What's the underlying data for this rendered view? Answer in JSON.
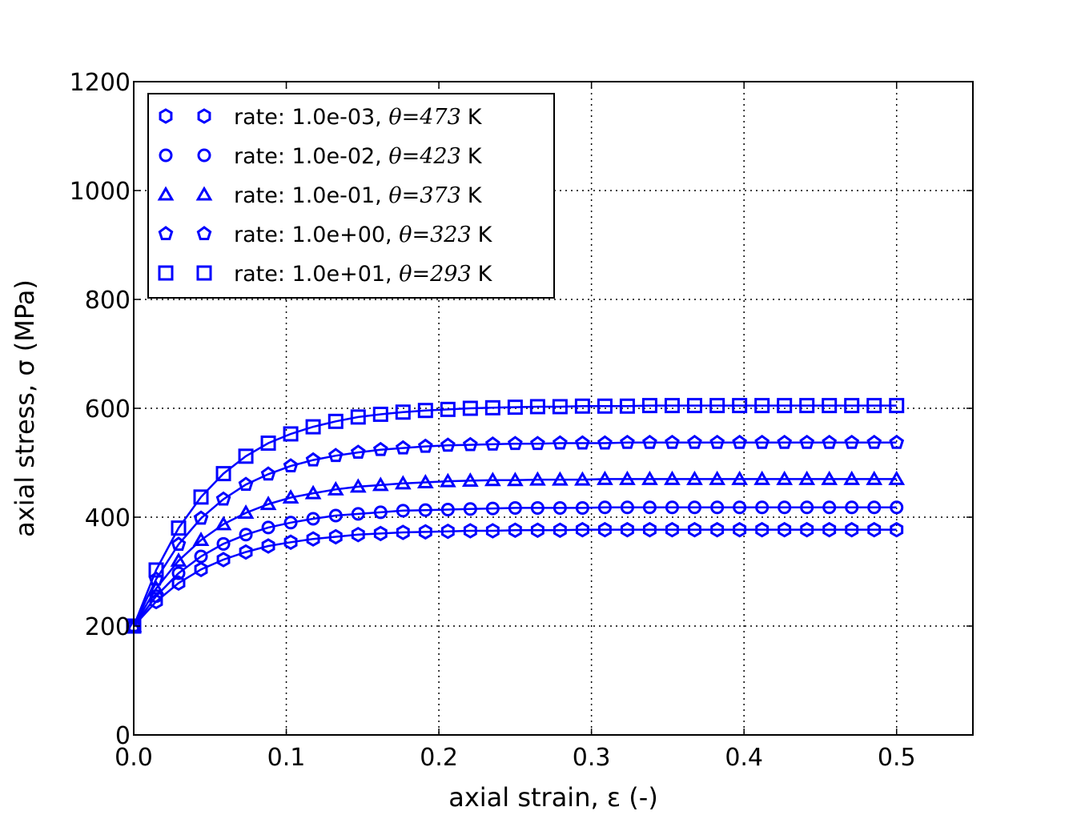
{
  "chart_data": {
    "type": "line",
    "xlabel": "axial strain, ε (-)",
    "ylabel": "axial stress, σ (MPa)",
    "xlim": [
      0,
      0.55
    ],
    "ylim": [
      0,
      1200
    ],
    "xticks": [
      0.0,
      0.1,
      0.2,
      0.3,
      0.4,
      0.5
    ],
    "xtick_labels": [
      "0.0",
      "0.1",
      "0.2",
      "0.3",
      "0.4",
      "0.5"
    ],
    "yticks": [
      0,
      200,
      400,
      600,
      800,
      1000,
      1200
    ],
    "ytick_labels": [
      "0",
      "200",
      "400",
      "600",
      "800",
      "1000",
      "1200"
    ],
    "grid": true,
    "legend_position": "top-left",
    "color": "#0000ff",
    "x": [
      0,
      0.0147,
      0.0294,
      0.0441,
      0.0588,
      0.0735,
      0.0882,
      0.1029,
      0.1176,
      0.1324,
      0.1471,
      0.1618,
      0.1765,
      0.1912,
      0.2059,
      0.2206,
      0.2353,
      0.25,
      0.2647,
      0.2794,
      0.2941,
      0.3088,
      0.3235,
      0.3382,
      0.3529,
      0.3676,
      0.3824,
      0.3971,
      0.4118,
      0.4265,
      0.4412,
      0.4559,
      0.4706,
      0.4853,
      0.5
    ],
    "series": [
      {
        "name": "rate: 1.0e-03, θ=473 K",
        "legend_prefix": "rate: 1.0e-03, ",
        "legend_math": "θ=473",
        "legend_unit": "K",
        "marker": "hexagon",
        "values": [
          200,
          245,
          279,
          304,
          322,
          336,
          347,
          354,
          360,
          364,
          368,
          370,
          372,
          373,
          374,
          375,
          375,
          376,
          376,
          376,
          377,
          377,
          377,
          377,
          377,
          377,
          377,
          377,
          377,
          377,
          377,
          377,
          377,
          377,
          377
        ]
      },
      {
        "name": "rate: 1.0e-02, θ=423 K",
        "legend_prefix": "rate: 1.0e-02, ",
        "legend_math": "θ=423",
        "legend_unit": "K",
        "marker": "circle",
        "values": [
          200,
          255,
          297,
          328,
          351,
          368,
          381,
          390,
          397,
          403,
          406,
          409,
          412,
          413,
          414,
          415,
          416,
          417,
          417,
          417,
          417,
          418,
          418,
          418,
          418,
          418,
          418,
          418,
          418,
          418,
          418,
          418,
          418,
          418,
          418
        ]
      },
      {
        "name": "rate: 1.0e-01, θ=373 K",
        "legend_prefix": "rate: 1.0e-01, ",
        "legend_math": "θ=373",
        "legend_unit": "K",
        "marker": "triangle",
        "values": [
          200,
          269,
          320,
          358,
          387,
          408,
          424,
          436,
          444,
          451,
          456,
          459,
          462,
          464,
          466,
          467,
          468,
          468,
          469,
          469,
          469,
          470,
          470,
          470,
          470,
          470,
          470,
          470,
          470,
          470,
          470,
          470,
          470,
          470,
          470
        ]
      },
      {
        "name": "rate: 1.0e+00, θ=323 K",
        "legend_prefix": "rate: 1.0e+00, ",
        "legend_math": "θ=323",
        "legend_unit": "K",
        "marker": "pentagon",
        "values": [
          200,
          286,
          350,
          398,
          433,
          460,
          479,
          494,
          505,
          513,
          519,
          524,
          527,
          530,
          532,
          533,
          534,
          535,
          535,
          536,
          536,
          536,
          537,
          537,
          537,
          537,
          537,
          537,
          537,
          537,
          537,
          537,
          537,
          537,
          537
        ]
      },
      {
        "name": "rate: 1.0e+01, θ=293 K",
        "legend_prefix": "rate: 1.0e+01, ",
        "legend_math": "θ=293",
        "legend_unit": "K",
        "marker": "square",
        "values": [
          200,
          303,
          380,
          437,
          480,
          512,
          536,
          553,
          566,
          576,
          584,
          589,
          593,
          596,
          598,
          600,
          601,
          602,
          603,
          603,
          604,
          604,
          604,
          605,
          605,
          605,
          605,
          605,
          605,
          605,
          605,
          605,
          605,
          605,
          605
        ]
      }
    ]
  }
}
